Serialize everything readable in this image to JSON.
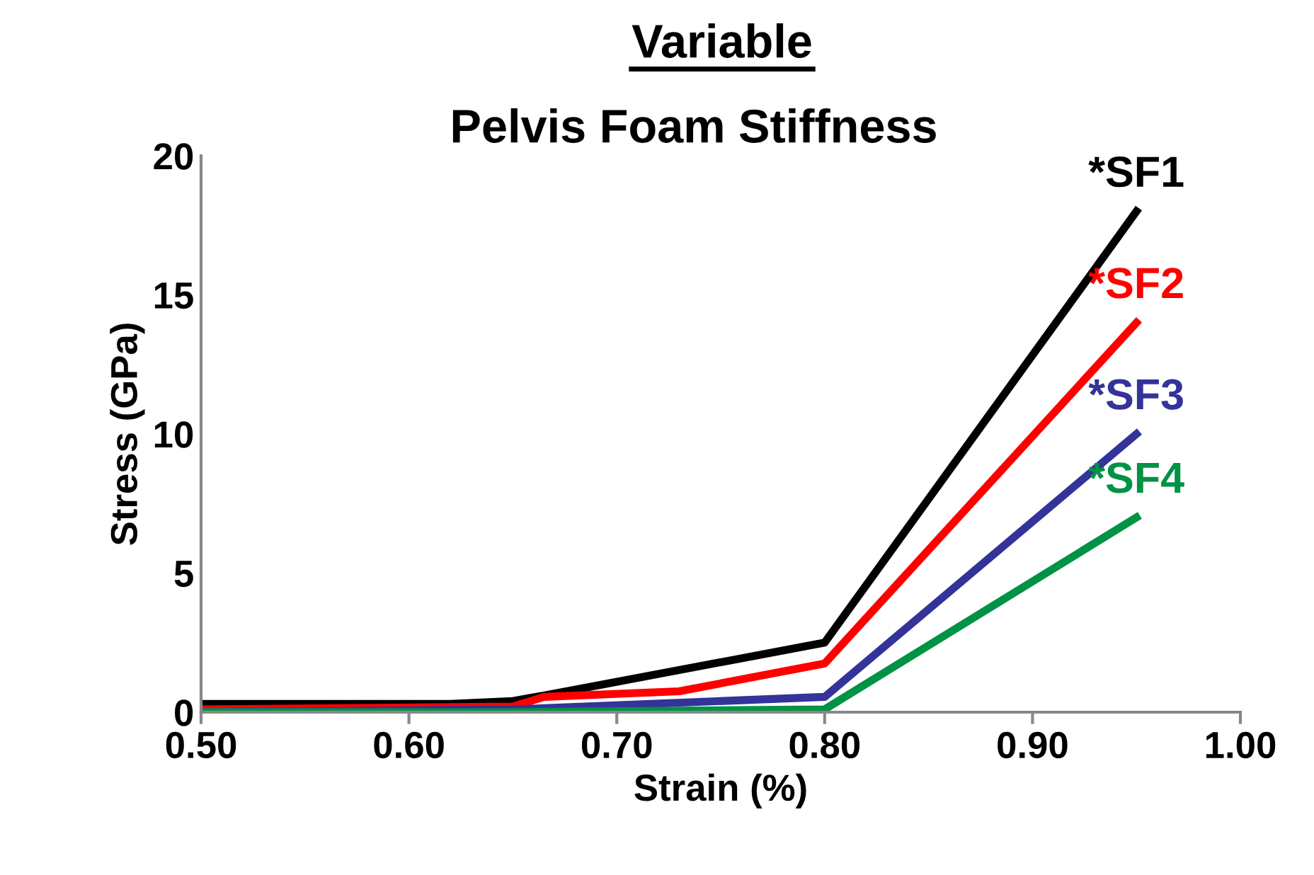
{
  "chart_data": {
    "type": "line",
    "title": "Variable",
    "subtitle": "Pelvis Foam Stiffness",
    "xlabel": "Strain (%)",
    "ylabel": "Stress (GPa)",
    "xlim": [
      0.5,
      1.0
    ],
    "xticks": [
      {
        "value": 0.5,
        "label": "0.50"
      },
      {
        "value": 0.6,
        "label": "0.60"
      },
      {
        "value": 0.7,
        "label": "0.70"
      },
      {
        "value": 0.8,
        "label": "0.80"
      },
      {
        "value": 0.9,
        "label": "0.90"
      },
      {
        "value": 1.0,
        "label": "1.00"
      }
    ],
    "ylim": [
      0,
      20
    ],
    "yticks": [
      0,
      5,
      10,
      15,
      20
    ],
    "grid": false,
    "legend": false,
    "marker": "none",
    "line_style": "solid",
    "series": [
      {
        "name": "*SF1",
        "color": "#000000",
        "x": [
          0.5,
          0.62,
          0.65,
          0.665,
          0.8,
          0.95
        ],
        "values": [
          0.3,
          0.3,
          0.4,
          0.6,
          2.5,
          18
        ]
      },
      {
        "name": "*SF2",
        "color": "#ff0000",
        "x": [
          0.5,
          0.65,
          0.665,
          0.73,
          0.8,
          0.95
        ],
        "values": [
          0.1,
          0.2,
          0.55,
          0.75,
          1.75,
          14
        ]
      },
      {
        "name": "*SF3",
        "color": "#333399",
        "x": [
          0.5,
          0.65,
          0.8,
          0.95
        ],
        "values": [
          0,
          0.1,
          0.55,
          10
        ]
      },
      {
        "name": "*SF4",
        "color": "#009245",
        "x": [
          0.5,
          0.65,
          0.8,
          0.95
        ],
        "values": [
          0,
          0,
          0.1,
          7
        ]
      }
    ]
  }
}
